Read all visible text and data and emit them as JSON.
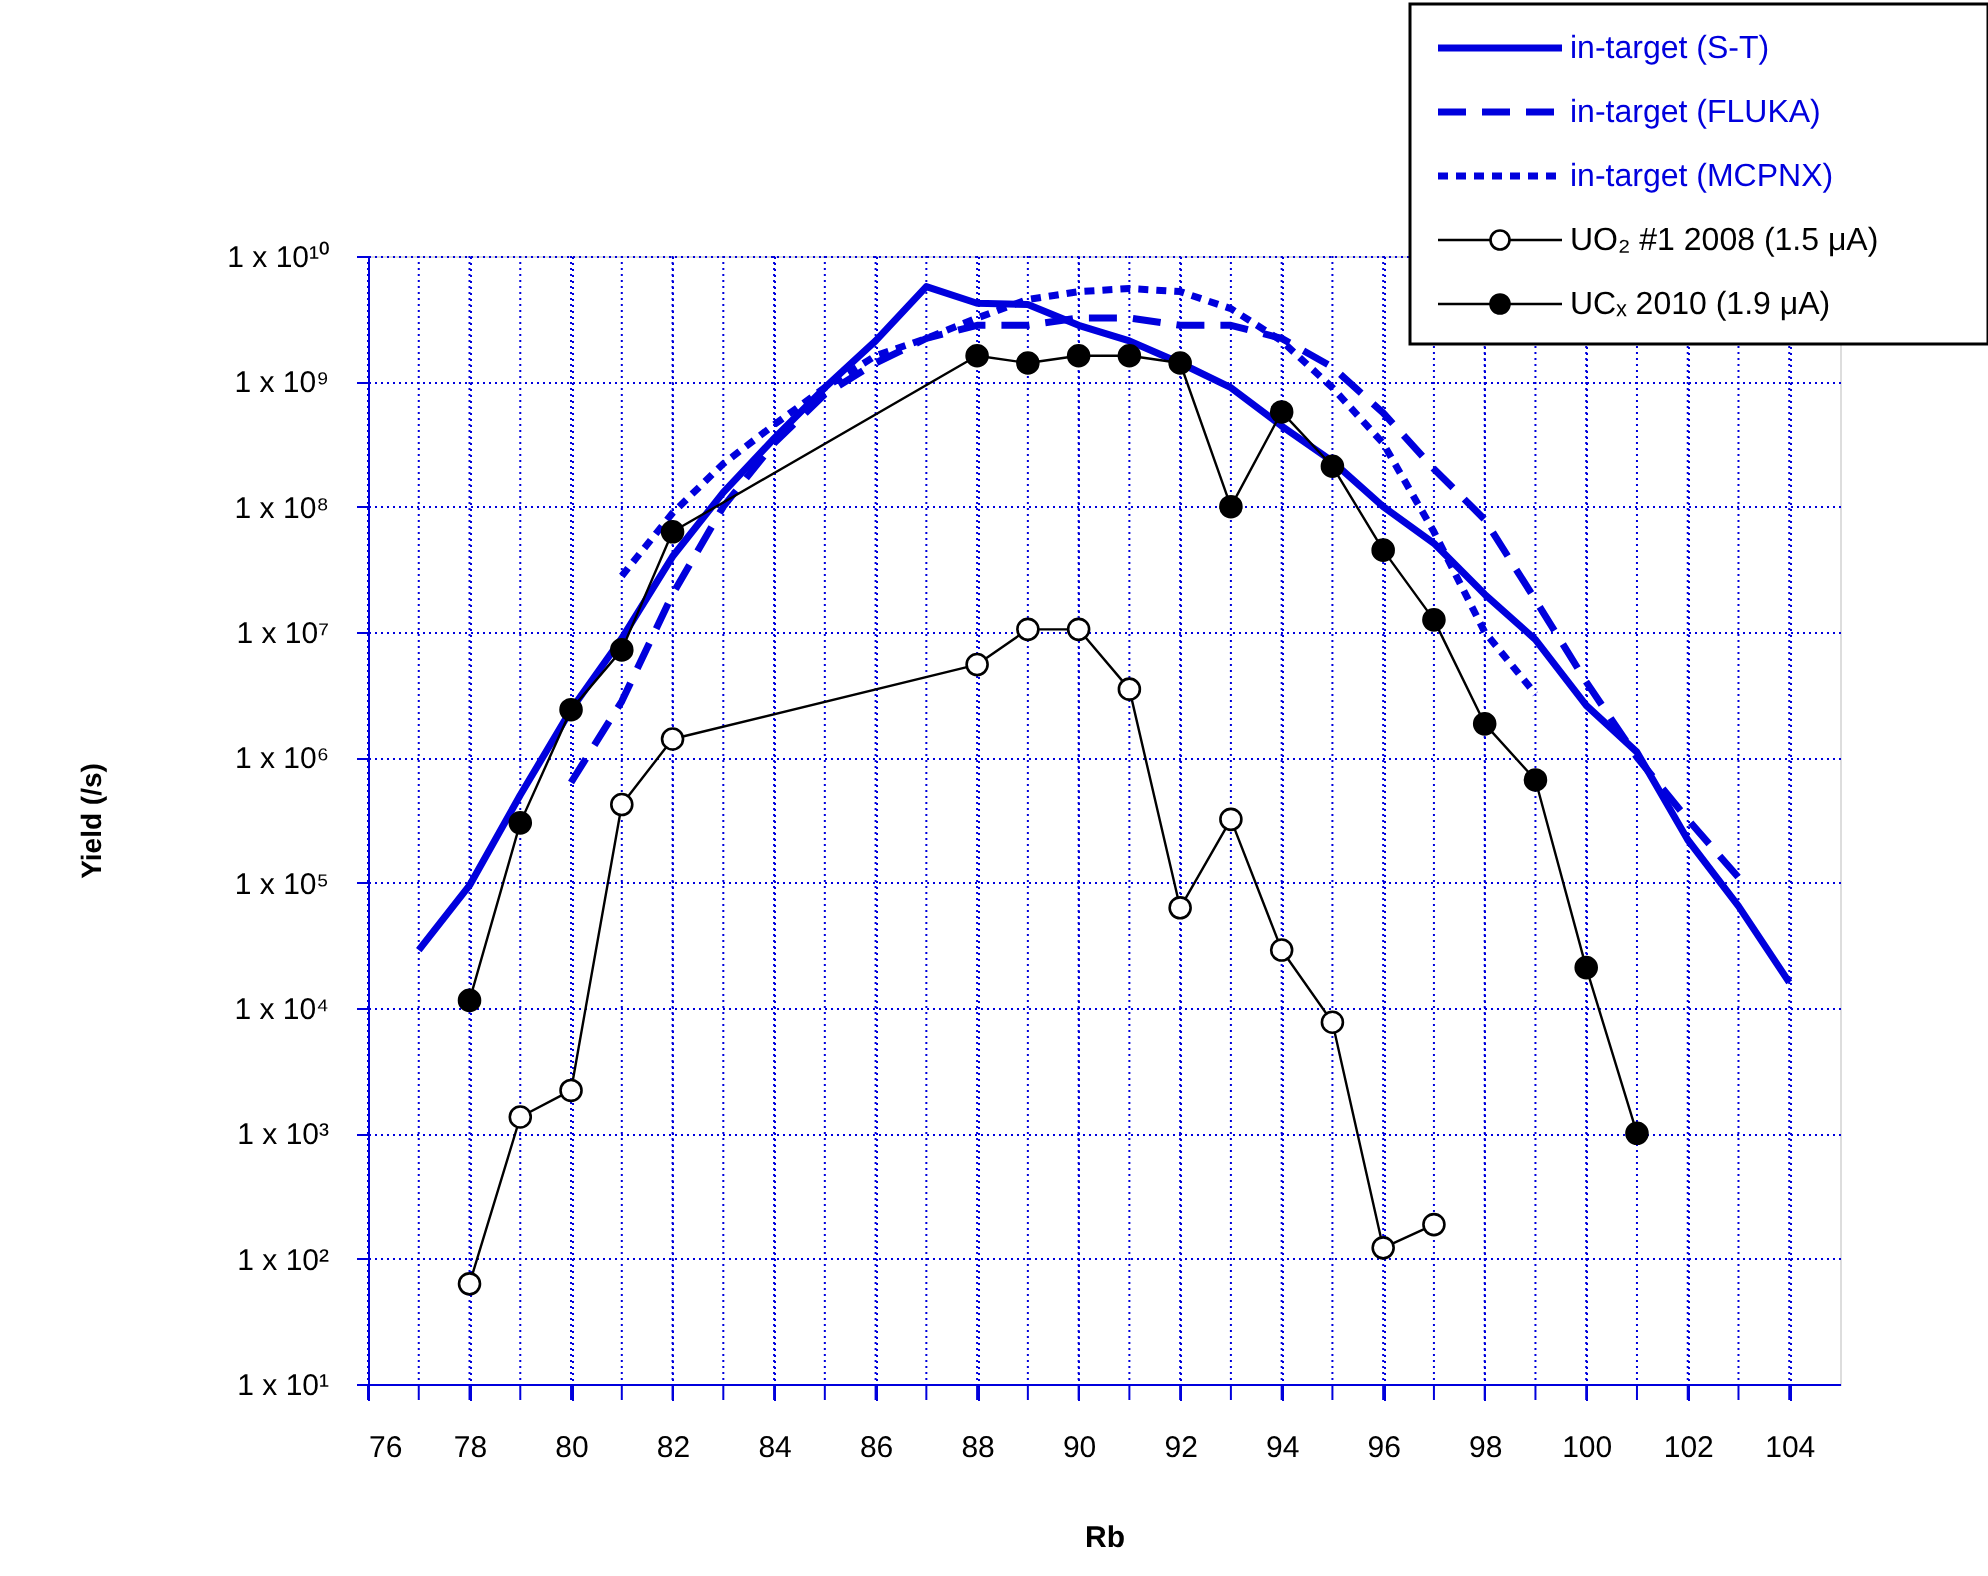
{
  "chart_data": {
    "type": "line",
    "xlabel": "Rb",
    "ylabel": "Yield (/s)",
    "log": "y",
    "grid": true,
    "legend": "top right",
    "xlim": [
      76,
      105
    ],
    "xticks": [
      76,
      {
        "value": 77,
        "label": null
      },
      78,
      {
        "value": 79,
        "label": null
      },
      80,
      {
        "value": 81,
        "label": null
      },
      82,
      {
        "value": 83,
        "label": null
      },
      84,
      {
        "value": 85,
        "label": null
      },
      86,
      {
        "value": 87,
        "label": null
      },
      88,
      {
        "value": 89,
        "label": null
      },
      90,
      {
        "value": 91,
        "label": null
      },
      92,
      {
        "value": 93,
        "label": null
      },
      94,
      {
        "value": 95,
        "label": null
      },
      96,
      {
        "value": 97,
        "label": null
      },
      98,
      {
        "value": 99,
        "label": null
      },
      100,
      {
        "value": 101,
        "label": null
      },
      102,
      {
        "value": 103,
        "label": null
      },
      104
    ],
    "ylim": [
      10,
      10000000000
    ],
    "yticks": [
      {
        "value": 10,
        "label": "1 x 10¹"
      },
      {
        "value": 100,
        "label": "1 x 10²"
      },
      {
        "value": 1000,
        "label": "1 x 10³"
      },
      {
        "value": 10000,
        "label": "1 x 10⁴"
      },
      {
        "value": 100000,
        "label": "1 x 10⁵"
      },
      {
        "value": 1000000,
        "label": "1 x 10⁶"
      },
      {
        "value": 10000000,
        "label": "1 x 10⁷"
      },
      {
        "value": 100000000,
        "label": "1 x 10⁸"
      },
      {
        "value": 1000000000,
        "label": "1 x 10⁹"
      },
      {
        "value": 10000000000,
        "label": "1 x 10¹⁰"
      }
    ],
    "series": [
      {
        "name": "in-target (S-T)",
        "color": "#0000dd",
        "line_style": "solid",
        "marker": "none",
        "x": [
          77,
          78,
          79,
          80,
          81,
          82,
          83,
          84,
          85,
          86,
          87,
          88,
          89,
          90,
          91,
          92,
          93,
          94,
          95,
          96,
          97,
          98,
          99,
          100,
          101,
          102,
          103,
          104
        ],
        "values": [
          29000,
          95000,
          500000,
          2400000,
          8900000,
          40000000,
          130000000,
          350000000,
          890000000,
          2100000000,
          5700000000,
          4200000000,
          4100000000,
          2800000000,
          2100000000,
          1400000000,
          890000000,
          440000000,
          230000000,
          100000000,
          51000000,
          20000000,
          8700000,
          2600000,
          1100000,
          220000,
          65000,
          16000
        ]
      },
      {
        "name": "in-target (FLUKA)",
        "color": "#0000dd",
        "line_style": "dashed",
        "marker": "none",
        "x": [
          80,
          81,
          82,
          83,
          84,
          85,
          86,
          87,
          88,
          89,
          90,
          91,
          92,
          93,
          94,
          95,
          96,
          97,
          98,
          99,
          100,
          101,
          102,
          103
        ],
        "values": [
          630000,
          2800000,
          20000000,
          100000000,
          320000000,
          790000000,
          1400000000,
          2200000000,
          2800000000,
          2800000000,
          3200000000,
          3200000000,
          2800000000,
          2800000000,
          2200000000,
          1300000000,
          560000000,
          200000000,
          79000000,
          18000000,
          4000000,
          1000000,
          320000,
          110000
        ]
      },
      {
        "name": "in-target  (MCPNX)",
        "color": "#0000dd",
        "line_style": "dotted",
        "marker": "none",
        "x": [
          81,
          82,
          83,
          84,
          85,
          86,
          87,
          88,
          89,
          90,
          91,
          92,
          93,
          94,
          95,
          96,
          97,
          98,
          99
        ],
        "values": [
          28000000,
          89000000,
          220000000,
          450000000,
          890000000,
          1600000000,
          2200000000,
          3200000000,
          4500000000,
          5200000000,
          5500000000,
          5200000000,
          3800000000,
          2100000000,
          890000000,
          320000000,
          63000000,
          10000000,
          3200000
        ]
      },
      {
        "name": "UO₂ #1 2008 (1.5 μA)",
        "color": "#000000",
        "line_style": "solid",
        "marker": "circle",
        "x": [
          78,
          79,
          80,
          81,
          82,
          88,
          89,
          90,
          91,
          92,
          93,
          94,
          95,
          96,
          97
        ],
        "values": [
          63,
          1350,
          2200,
          420000,
          1400000,
          5500000,
          10500000,
          10500000,
          3500000,
          63000,
          320000,
          29000,
          7700,
          122,
          187
        ]
      },
      {
        "name": "UCₓ 2010 (1.9 μA)",
        "color": "#000000",
        "line_style": "solid",
        "marker": "circle",
        "x": [
          78,
          79,
          80,
          81,
          82,
          88,
          89,
          90,
          91,
          92,
          93,
          94,
          95,
          96,
          97,
          98,
          99,
          100,
          101
        ],
        "values": [
          11500,
          300000,
          2400000,
          7200000,
          63000000,
          1600000000,
          1400000000,
          1600000000,
          1600000000,
          1400000000,
          100000000,
          570000000,
          210000000,
          45000000,
          12500000,
          1850000,
          660000,
          21000,
          1000
        ]
      }
    ]
  }
}
